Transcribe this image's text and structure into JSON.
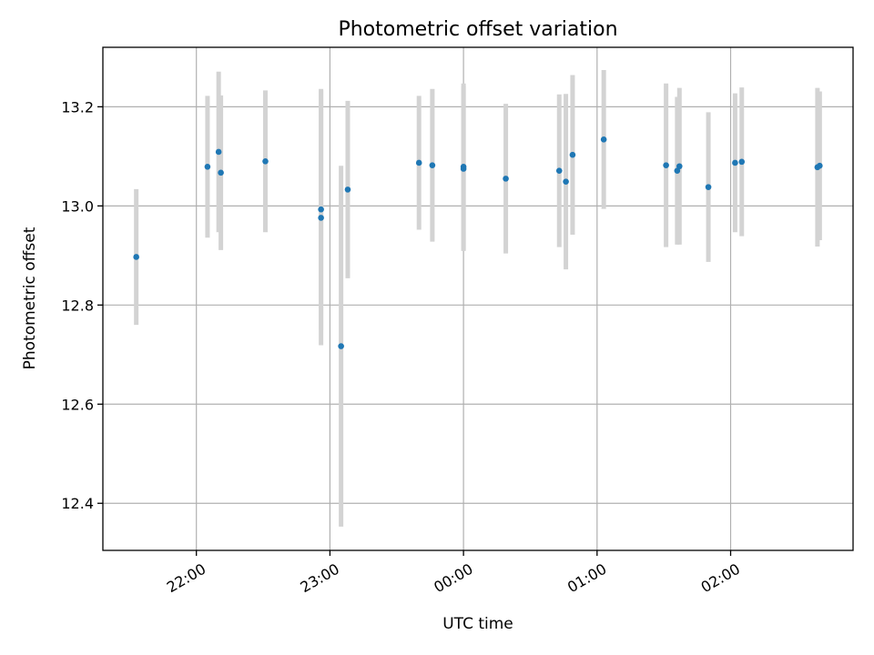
{
  "chart_data": {
    "type": "scatter",
    "title": "Photometric offset variation",
    "xlabel": "UTC time",
    "ylabel": "Photometric offset",
    "x_unit": "time",
    "xlim": [
      "21:18",
      "02:55"
    ],
    "ylim": [
      12.305,
      13.32
    ],
    "x_ticks": [
      "22:00",
      "23:00",
      "00:00",
      "01:00",
      "02:00"
    ],
    "y_ticks": [
      12.4,
      12.6,
      12.8,
      13.0,
      13.2
    ],
    "y_tick_labels": [
      "12.4",
      "12.6",
      "12.8",
      "13.0",
      "13.2"
    ],
    "grid": true,
    "colors": {
      "point": "#1f77b4",
      "errorbar": "#d3d3d3",
      "grid": "#b0b0b0"
    },
    "series": [
      {
        "points": [
          {
            "x": "21:33",
            "y": 12.897,
            "err": 0.137
          },
          {
            "x": "22:05",
            "y": 13.079,
            "err": 0.143
          },
          {
            "x": "22:10",
            "y": 13.109,
            "err": 0.162
          },
          {
            "x": "22:11",
            "y": 13.067,
            "err": 0.156
          },
          {
            "x": "22:31",
            "y": 13.09,
            "err": 0.143
          },
          {
            "x": "22:56",
            "y": 12.993,
            "err": 0.243
          },
          {
            "x": "22:56",
            "y": 12.976,
            "err": 0.257
          },
          {
            "x": "23:05",
            "y": 12.717,
            "err": 0.364
          },
          {
            "x": "23:08",
            "y": 13.033,
            "err": 0.179
          },
          {
            "x": "23:40",
            "y": 13.087,
            "err": 0.135
          },
          {
            "x": "23:46",
            "y": 13.082,
            "err": 0.154
          },
          {
            "x": "00:00",
            "y": 13.079,
            "err": 0.168
          },
          {
            "x": "00:00",
            "y": 13.075,
            "err": 0.166
          },
          {
            "x": "00:19",
            "y": 13.055,
            "err": 0.151
          },
          {
            "x": "00:43",
            "y": 13.071,
            "err": 0.154
          },
          {
            "x": "00:46",
            "y": 13.049,
            "err": 0.177
          },
          {
            "x": "00:49",
            "y": 13.103,
            "err": 0.161
          },
          {
            "x": "01:03",
            "y": 13.134,
            "err": 0.14
          },
          {
            "x": "01:31",
            "y": 13.082,
            "err": 0.165
          },
          {
            "x": "01:36",
            "y": 13.071,
            "err": 0.149
          },
          {
            "x": "01:37",
            "y": 13.08,
            "err": 0.158
          },
          {
            "x": "01:50",
            "y": 13.038,
            "err": 0.151
          },
          {
            "x": "02:02",
            "y": 13.087,
            "err": 0.14
          },
          {
            "x": "02:05",
            "y": 13.089,
            "err": 0.15
          },
          {
            "x": "02:39",
            "y": 13.078,
            "err": 0.16
          },
          {
            "x": "02:40",
            "y": 13.081,
            "err": 0.15
          }
        ]
      }
    ]
  }
}
